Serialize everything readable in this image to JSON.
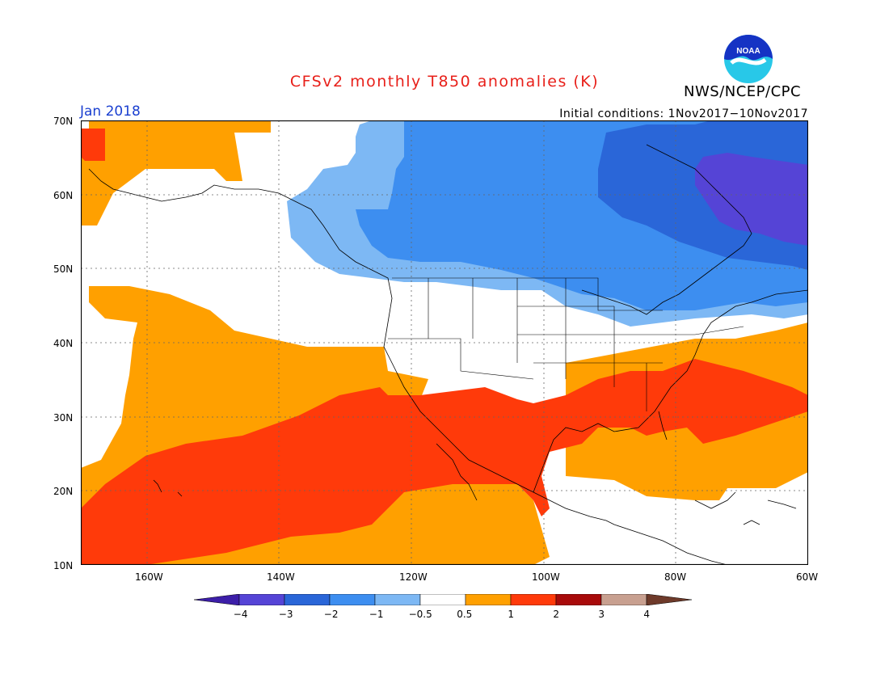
{
  "header": {
    "title": "CFSv2 monthly T850 anomalies (K)",
    "agency": "NWS/NCEP/CPC",
    "month": "Jan 2018",
    "initial_conditions": "Initial conditions: 1Nov2017−10Nov2017"
  },
  "logo": {
    "text": "NOAA",
    "icon": "noaa-logo-icon",
    "colors": {
      "top": "#1533c4",
      "bottom": "#28c8e8"
    }
  },
  "map": {
    "region": "North America and eastern Pacific",
    "lon_range": [
      -170,
      -60
    ],
    "lat_range": [
      10,
      70
    ],
    "lat_labels": [
      "70N",
      "60N",
      "50N",
      "40N",
      "30N",
      "20N",
      "10N"
    ],
    "lon_labels": [
      "160W",
      "140W",
      "120W",
      "100W",
      "80W",
      "60W"
    ],
    "gridlines": "dotted every 20 degrees longitude, 10 degrees latitude"
  },
  "colorbar": {
    "ticks": [
      "−4",
      "−3",
      "−2",
      "−1",
      "−0.5",
      "0.5",
      "1",
      "2",
      "3",
      "4"
    ],
    "colors": [
      "#3c1ea8",
      "#5544d6",
      "#2a66d8",
      "#3d8ef0",
      "#7db8f4",
      "#ffffff",
      "#ffa000",
      "#ff3a0a",
      "#a80a0a",
      "#c8a090",
      "#6e3a2a"
    ]
  }
}
